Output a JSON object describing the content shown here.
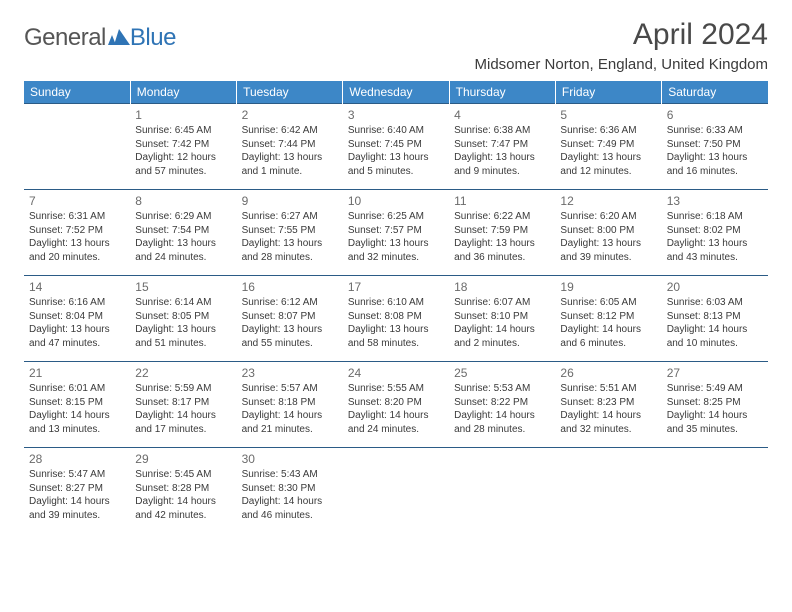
{
  "logo": {
    "general": "General",
    "blue": "Blue"
  },
  "title": "April 2024",
  "location": "Midsomer Norton, England, United Kingdom",
  "colors": {
    "header_bg": "#3d87c7",
    "header_text": "#ffffff",
    "row_border": "#2b5b86",
    "accent": "#2f74b5",
    "text": "#3a3a3a",
    "title_text": "#494949",
    "daynum_text": "#6b6b6b"
  },
  "day_headers": [
    "Sunday",
    "Monday",
    "Tuesday",
    "Wednesday",
    "Thursday",
    "Friday",
    "Saturday"
  ],
  "weeks": [
    [
      null,
      {
        "n": "1",
        "sr": "Sunrise: 6:45 AM",
        "ss": "Sunset: 7:42 PM",
        "dl1": "Daylight: 12 hours",
        "dl2": "and 57 minutes."
      },
      {
        "n": "2",
        "sr": "Sunrise: 6:42 AM",
        "ss": "Sunset: 7:44 PM",
        "dl1": "Daylight: 13 hours",
        "dl2": "and 1 minute."
      },
      {
        "n": "3",
        "sr": "Sunrise: 6:40 AM",
        "ss": "Sunset: 7:45 PM",
        "dl1": "Daylight: 13 hours",
        "dl2": "and 5 minutes."
      },
      {
        "n": "4",
        "sr": "Sunrise: 6:38 AM",
        "ss": "Sunset: 7:47 PM",
        "dl1": "Daylight: 13 hours",
        "dl2": "and 9 minutes."
      },
      {
        "n": "5",
        "sr": "Sunrise: 6:36 AM",
        "ss": "Sunset: 7:49 PM",
        "dl1": "Daylight: 13 hours",
        "dl2": "and 12 minutes."
      },
      {
        "n": "6",
        "sr": "Sunrise: 6:33 AM",
        "ss": "Sunset: 7:50 PM",
        "dl1": "Daylight: 13 hours",
        "dl2": "and 16 minutes."
      }
    ],
    [
      {
        "n": "7",
        "sr": "Sunrise: 6:31 AM",
        "ss": "Sunset: 7:52 PM",
        "dl1": "Daylight: 13 hours",
        "dl2": "and 20 minutes."
      },
      {
        "n": "8",
        "sr": "Sunrise: 6:29 AM",
        "ss": "Sunset: 7:54 PM",
        "dl1": "Daylight: 13 hours",
        "dl2": "and 24 minutes."
      },
      {
        "n": "9",
        "sr": "Sunrise: 6:27 AM",
        "ss": "Sunset: 7:55 PM",
        "dl1": "Daylight: 13 hours",
        "dl2": "and 28 minutes."
      },
      {
        "n": "10",
        "sr": "Sunrise: 6:25 AM",
        "ss": "Sunset: 7:57 PM",
        "dl1": "Daylight: 13 hours",
        "dl2": "and 32 minutes."
      },
      {
        "n": "11",
        "sr": "Sunrise: 6:22 AM",
        "ss": "Sunset: 7:59 PM",
        "dl1": "Daylight: 13 hours",
        "dl2": "and 36 minutes."
      },
      {
        "n": "12",
        "sr": "Sunrise: 6:20 AM",
        "ss": "Sunset: 8:00 PM",
        "dl1": "Daylight: 13 hours",
        "dl2": "and 39 minutes."
      },
      {
        "n": "13",
        "sr": "Sunrise: 6:18 AM",
        "ss": "Sunset: 8:02 PM",
        "dl1": "Daylight: 13 hours",
        "dl2": "and 43 minutes."
      }
    ],
    [
      {
        "n": "14",
        "sr": "Sunrise: 6:16 AM",
        "ss": "Sunset: 8:04 PM",
        "dl1": "Daylight: 13 hours",
        "dl2": "and 47 minutes."
      },
      {
        "n": "15",
        "sr": "Sunrise: 6:14 AM",
        "ss": "Sunset: 8:05 PM",
        "dl1": "Daylight: 13 hours",
        "dl2": "and 51 minutes."
      },
      {
        "n": "16",
        "sr": "Sunrise: 6:12 AM",
        "ss": "Sunset: 8:07 PM",
        "dl1": "Daylight: 13 hours",
        "dl2": "and 55 minutes."
      },
      {
        "n": "17",
        "sr": "Sunrise: 6:10 AM",
        "ss": "Sunset: 8:08 PM",
        "dl1": "Daylight: 13 hours",
        "dl2": "and 58 minutes."
      },
      {
        "n": "18",
        "sr": "Sunrise: 6:07 AM",
        "ss": "Sunset: 8:10 PM",
        "dl1": "Daylight: 14 hours",
        "dl2": "and 2 minutes."
      },
      {
        "n": "19",
        "sr": "Sunrise: 6:05 AM",
        "ss": "Sunset: 8:12 PM",
        "dl1": "Daylight: 14 hours",
        "dl2": "and 6 minutes."
      },
      {
        "n": "20",
        "sr": "Sunrise: 6:03 AM",
        "ss": "Sunset: 8:13 PM",
        "dl1": "Daylight: 14 hours",
        "dl2": "and 10 minutes."
      }
    ],
    [
      {
        "n": "21",
        "sr": "Sunrise: 6:01 AM",
        "ss": "Sunset: 8:15 PM",
        "dl1": "Daylight: 14 hours",
        "dl2": "and 13 minutes."
      },
      {
        "n": "22",
        "sr": "Sunrise: 5:59 AM",
        "ss": "Sunset: 8:17 PM",
        "dl1": "Daylight: 14 hours",
        "dl2": "and 17 minutes."
      },
      {
        "n": "23",
        "sr": "Sunrise: 5:57 AM",
        "ss": "Sunset: 8:18 PM",
        "dl1": "Daylight: 14 hours",
        "dl2": "and 21 minutes."
      },
      {
        "n": "24",
        "sr": "Sunrise: 5:55 AM",
        "ss": "Sunset: 8:20 PM",
        "dl1": "Daylight: 14 hours",
        "dl2": "and 24 minutes."
      },
      {
        "n": "25",
        "sr": "Sunrise: 5:53 AM",
        "ss": "Sunset: 8:22 PM",
        "dl1": "Daylight: 14 hours",
        "dl2": "and 28 minutes."
      },
      {
        "n": "26",
        "sr": "Sunrise: 5:51 AM",
        "ss": "Sunset: 8:23 PM",
        "dl1": "Daylight: 14 hours",
        "dl2": "and 32 minutes."
      },
      {
        "n": "27",
        "sr": "Sunrise: 5:49 AM",
        "ss": "Sunset: 8:25 PM",
        "dl1": "Daylight: 14 hours",
        "dl2": "and 35 minutes."
      }
    ],
    [
      {
        "n": "28",
        "sr": "Sunrise: 5:47 AM",
        "ss": "Sunset: 8:27 PM",
        "dl1": "Daylight: 14 hours",
        "dl2": "and 39 minutes."
      },
      {
        "n": "29",
        "sr": "Sunrise: 5:45 AM",
        "ss": "Sunset: 8:28 PM",
        "dl1": "Daylight: 14 hours",
        "dl2": "and 42 minutes."
      },
      {
        "n": "30",
        "sr": "Sunrise: 5:43 AM",
        "ss": "Sunset: 8:30 PM",
        "dl1": "Daylight: 14 hours",
        "dl2": "and 46 minutes."
      },
      null,
      null,
      null,
      null
    ]
  ]
}
